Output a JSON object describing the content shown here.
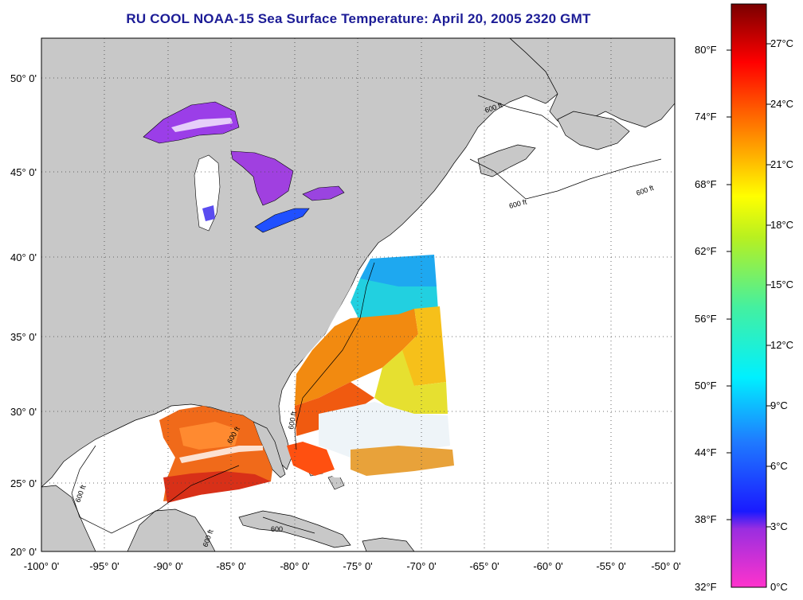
{
  "title": "RU COOL  NOAA-15  Sea Surface Temperature:  April 20, 2005 2320 GMT",
  "map": {
    "lon_ticks": [
      "-100° 0'",
      "-95° 0'",
      "-90° 0'",
      "-85° 0'",
      "-80° 0'",
      "-75° 0'",
      "-70° 0'",
      "-65° 0'",
      "-60° 0'",
      "-55° 0'",
      "-50° 0'"
    ],
    "lat_ticks": [
      "50° 0'",
      "45° 0'",
      "40° 0'",
      "35° 0'",
      "30° 0'",
      "25° 0'",
      "20° 0'"
    ],
    "depth_contour_labels": [
      "600 ft",
      "600 ft",
      "600 ft",
      "600 ft",
      "600 ft",
      "600 ft",
      "600 ft",
      "600"
    ],
    "land_color": "#c8c8c8",
    "water_color": "#ffffff"
  },
  "colorbar": {
    "fahrenheit": [
      "80°F",
      "74°F",
      "68°F",
      "62°F",
      "56°F",
      "50°F",
      "44°F",
      "38°F",
      "32°F"
    ],
    "celsius": [
      "27°C",
      "24°C",
      "21°C",
      "18°C",
      "15°C",
      "12°C",
      "9°C",
      "6°C",
      "3°C",
      "0°C"
    ]
  }
}
